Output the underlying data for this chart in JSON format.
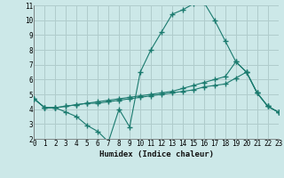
{
  "xlabel": "Humidex (Indice chaleur)",
  "background_color": "#cce8e8",
  "grid_color": "#b0cccc",
  "line_color": "#1a7a6e",
  "x_min": 0,
  "x_max": 23,
  "y_min": 2,
  "y_max": 11,
  "series1_x": [
    0,
    1,
    2,
    3,
    4,
    5,
    6,
    7,
    8,
    9,
    10,
    11,
    12,
    13,
    14,
    15,
    16,
    17,
    18,
    19,
    20,
    21,
    22,
    23
  ],
  "series1_y": [
    4.7,
    4.1,
    4.1,
    3.8,
    3.5,
    2.9,
    2.5,
    1.8,
    4.0,
    2.8,
    6.5,
    8.0,
    9.2,
    10.4,
    10.7,
    11.1,
    11.2,
    10.0,
    8.6,
    7.2,
    6.5,
    5.1,
    4.2,
    3.8
  ],
  "series2_x": [
    0,
    1,
    2,
    3,
    4,
    5,
    6,
    7,
    8,
    9,
    10,
    11,
    12,
    13,
    14,
    15,
    16,
    17,
    18,
    19,
    20,
    21,
    22,
    23
  ],
  "series2_y": [
    4.7,
    4.1,
    4.1,
    4.2,
    4.3,
    4.4,
    4.5,
    4.6,
    4.7,
    4.8,
    4.9,
    5.0,
    5.1,
    5.2,
    5.4,
    5.6,
    5.8,
    6.0,
    6.2,
    7.2,
    6.5,
    5.1,
    4.2,
    3.8
  ],
  "series3_x": [
    0,
    1,
    2,
    3,
    4,
    5,
    6,
    7,
    8,
    9,
    10,
    11,
    12,
    13,
    14,
    15,
    16,
    17,
    18,
    19,
    20,
    21,
    22,
    23
  ],
  "series3_y": [
    4.7,
    4.1,
    4.1,
    4.2,
    4.3,
    4.4,
    4.4,
    4.5,
    4.6,
    4.7,
    4.8,
    4.9,
    5.0,
    5.1,
    5.2,
    5.3,
    5.5,
    5.6,
    5.7,
    6.1,
    6.5,
    5.1,
    4.2,
    3.8
  ]
}
